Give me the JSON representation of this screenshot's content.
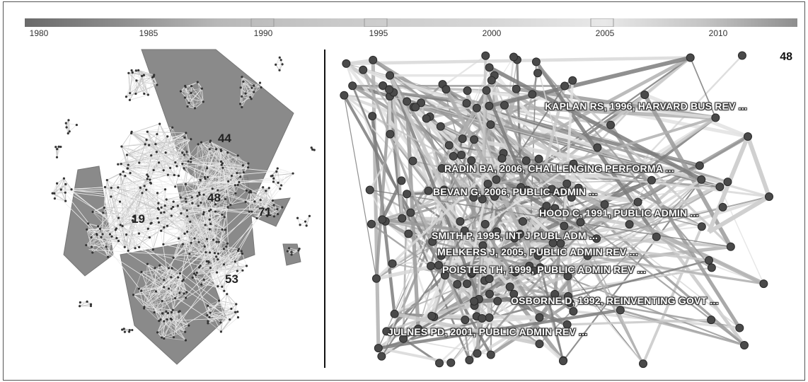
{
  "timeline": {
    "labels": [
      "1980",
      "1985",
      "1990",
      "1995",
      "2000",
      "2005",
      "2010"
    ]
  },
  "left_panel": {
    "cluster_labels": [
      "44",
      "48",
      "19",
      "71",
      "53"
    ]
  },
  "right_panel": {
    "cluster_number": "48",
    "references": [
      "KAPLAN RS, 1996, HARVARD BUS REV ...",
      "RADIN BA, 2006, CHALLENGING PERFORMA ...",
      "BEVAN G, 2006, PUBLIC ADMIN ...",
      "HOOD C, 1991, PUBLIC ADMIN ...",
      "SMITH P, 1995, INT J PUBL ADM ...",
      "MELKERS J, 2005, PUBLIC ADMIN REV ...",
      "POISTER TH, 1999, PUBLIC ADMIN REV ...",
      "OSBORNE D, 1992, REINVENTING GOVT ...",
      "JULNES PD, 2001, PUBLIC ADMIN REV ..."
    ]
  },
  "colors": {
    "node": "#4a4a4a",
    "edge_dark": "#6e6e6e",
    "edge_light": "#c8c8c8",
    "hull": "#8a8a8a"
  }
}
